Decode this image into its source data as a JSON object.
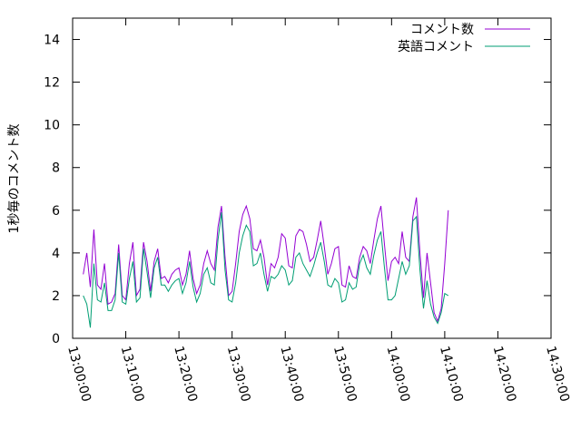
{
  "chart_data": {
    "type": "line",
    "ylabel": "1秒毎のコメント数",
    "xlabel": "",
    "ylim": [
      0,
      15
    ],
    "xlim": [
      "13:00:00",
      "14:30:00"
    ],
    "grid": false,
    "legend_position": "top-right",
    "y_ticks": [
      0,
      2,
      4,
      6,
      8,
      10,
      12,
      14
    ],
    "x_ticks": [
      "13:00:00",
      "13:10:00",
      "13:20:00",
      "13:30:00",
      "13:40:00",
      "13:50:00",
      "14:00:00",
      "14:10:00",
      "14:20:00",
      "14:30:00"
    ],
    "series": [
      {
        "name": "コメント数",
        "color": "#9400D3",
        "points": [
          [
            "13:02:00",
            3.0
          ],
          [
            "13:02:40",
            4.0
          ],
          [
            "13:03:20",
            2.4
          ],
          [
            "13:04:00",
            5.1
          ],
          [
            "13:04:40",
            2.5
          ],
          [
            "13:05:20",
            2.3
          ],
          [
            "13:06:00",
            3.5
          ],
          [
            "13:06:40",
            1.6
          ],
          [
            "13:07:20",
            1.7
          ],
          [
            "13:08:00",
            2.1
          ],
          [
            "13:08:40",
            4.4
          ],
          [
            "13:09:20",
            2.0
          ],
          [
            "13:10:00",
            1.8
          ],
          [
            "13:10:40",
            3.5
          ],
          [
            "13:11:20",
            4.5
          ],
          [
            "13:12:00",
            2.0
          ],
          [
            "13:12:40",
            2.3
          ],
          [
            "13:13:20",
            4.5
          ],
          [
            "13:14:00",
            3.6
          ],
          [
            "13:14:40",
            2.2
          ],
          [
            "13:15:20",
            3.6
          ],
          [
            "13:16:00",
            4.2
          ],
          [
            "13:16:40",
            2.8
          ],
          [
            "13:17:20",
            2.9
          ],
          [
            "13:18:00",
            2.6
          ],
          [
            "13:18:40",
            3.0
          ],
          [
            "13:19:20",
            3.2
          ],
          [
            "13:20:00",
            3.3
          ],
          [
            "13:20:40",
            2.5
          ],
          [
            "13:21:20",
            3.0
          ],
          [
            "13:22:00",
            4.1
          ],
          [
            "13:22:40",
            2.8
          ],
          [
            "13:23:20",
            2.1
          ],
          [
            "13:24:00",
            2.5
          ],
          [
            "13:24:40",
            3.5
          ],
          [
            "13:25:20",
            4.1
          ],
          [
            "13:26:00",
            3.5
          ],
          [
            "13:26:40",
            3.2
          ],
          [
            "13:27:20",
            5.2
          ],
          [
            "13:28:00",
            6.2
          ],
          [
            "13:28:40",
            3.8
          ],
          [
            "13:29:20",
            2.0
          ],
          [
            "13:30:00",
            2.2
          ],
          [
            "13:30:40",
            3.5
          ],
          [
            "13:31:20",
            5.0
          ],
          [
            "13:32:00",
            5.8
          ],
          [
            "13:32:40",
            6.2
          ],
          [
            "13:33:20",
            5.6
          ],
          [
            "13:34:00",
            4.2
          ],
          [
            "13:34:40",
            4.1
          ],
          [
            "13:35:20",
            4.6
          ],
          [
            "13:36:00",
            3.8
          ],
          [
            "13:36:40",
            2.5
          ],
          [
            "13:37:20",
            3.5
          ],
          [
            "13:38:00",
            3.3
          ],
          [
            "13:38:40",
            3.8
          ],
          [
            "13:39:20",
            4.9
          ],
          [
            "13:40:00",
            4.7
          ],
          [
            "13:40:40",
            3.4
          ],
          [
            "13:41:20",
            3.3
          ],
          [
            "13:42:00",
            4.8
          ],
          [
            "13:42:40",
            5.1
          ],
          [
            "13:43:20",
            5.0
          ],
          [
            "13:44:00",
            4.4
          ],
          [
            "13:44:40",
            3.6
          ],
          [
            "13:45:20",
            3.8
          ],
          [
            "13:46:00",
            4.6
          ],
          [
            "13:46:40",
            5.5
          ],
          [
            "13:47:20",
            4.3
          ],
          [
            "13:48:00",
            3.0
          ],
          [
            "13:48:40",
            3.5
          ],
          [
            "13:49:20",
            4.2
          ],
          [
            "13:50:00",
            4.3
          ],
          [
            "13:50:40",
            2.5
          ],
          [
            "13:51:20",
            2.4
          ],
          [
            "13:52:00",
            3.4
          ],
          [
            "13:52:40",
            2.9
          ],
          [
            "13:53:20",
            2.8
          ],
          [
            "13:54:00",
            3.8
          ],
          [
            "13:54:40",
            4.3
          ],
          [
            "13:55:20",
            4.1
          ],
          [
            "13:56:00",
            3.5
          ],
          [
            "13:56:40",
            4.6
          ],
          [
            "13:57:20",
            5.6
          ],
          [
            "13:58:00",
            6.2
          ],
          [
            "13:58:40",
            4.4
          ],
          [
            "13:59:20",
            2.7
          ],
          [
            "14:00:00",
            3.6
          ],
          [
            "14:00:40",
            3.8
          ],
          [
            "14:01:20",
            3.5
          ],
          [
            "14:02:00",
            5.0
          ],
          [
            "14:02:40",
            3.8
          ],
          [
            "14:03:20",
            3.6
          ],
          [
            "14:04:00",
            5.7
          ],
          [
            "14:04:40",
            6.6
          ],
          [
            "14:05:20",
            4.0
          ],
          [
            "14:06:00",
            1.9
          ],
          [
            "14:06:40",
            4.0
          ],
          [
            "14:07:20",
            2.6
          ],
          [
            "14:08:00",
            1.2
          ],
          [
            "14:08:40",
            0.8
          ],
          [
            "14:09:20",
            1.4
          ],
          [
            "14:10:00",
            3.5
          ],
          [
            "14:10:40",
            6.0
          ]
        ]
      },
      {
        "name": "英語コメント",
        "color": "#009E73",
        "points": [
          [
            "13:02:00",
            2.0
          ],
          [
            "13:02:40",
            1.6
          ],
          [
            "13:03:20",
            0.5
          ],
          [
            "13:04:00",
            3.5
          ],
          [
            "13:04:40",
            1.8
          ],
          [
            "13:05:20",
            1.7
          ],
          [
            "13:06:00",
            2.6
          ],
          [
            "13:06:40",
            1.3
          ],
          [
            "13:07:20",
            1.3
          ],
          [
            "13:08:00",
            1.8
          ],
          [
            "13:08:40",
            4.0
          ],
          [
            "13:09:20",
            1.7
          ],
          [
            "13:10:00",
            1.6
          ],
          [
            "13:10:40",
            2.8
          ],
          [
            "13:11:20",
            3.6
          ],
          [
            "13:12:00",
            1.7
          ],
          [
            "13:12:40",
            1.9
          ],
          [
            "13:13:20",
            4.2
          ],
          [
            "13:14:00",
            3.1
          ],
          [
            "13:14:40",
            1.9
          ],
          [
            "13:15:20",
            3.3
          ],
          [
            "13:16:00",
            3.8
          ],
          [
            "13:16:40",
            2.5
          ],
          [
            "13:17:20",
            2.5
          ],
          [
            "13:18:00",
            2.2
          ],
          [
            "13:18:40",
            2.5
          ],
          [
            "13:19:20",
            2.7
          ],
          [
            "13:20:00",
            2.8
          ],
          [
            "13:20:40",
            2.1
          ],
          [
            "13:21:20",
            2.6
          ],
          [
            "13:22:00",
            3.6
          ],
          [
            "13:22:40",
            2.4
          ],
          [
            "13:23:20",
            1.7
          ],
          [
            "13:24:00",
            2.1
          ],
          [
            "13:24:40",
            3.0
          ],
          [
            "13:25:20",
            3.3
          ],
          [
            "13:26:00",
            2.6
          ],
          [
            "13:26:40",
            2.5
          ],
          [
            "13:27:20",
            4.6
          ],
          [
            "13:28:00",
            5.9
          ],
          [
            "13:28:40",
            3.2
          ],
          [
            "13:29:20",
            1.8
          ],
          [
            "13:30:00",
            1.7
          ],
          [
            "13:30:40",
            2.6
          ],
          [
            "13:31:20",
            4.0
          ],
          [
            "13:32:00",
            4.8
          ],
          [
            "13:32:40",
            5.3
          ],
          [
            "13:33:20",
            5.0
          ],
          [
            "13:34:00",
            3.4
          ],
          [
            "13:34:40",
            3.5
          ],
          [
            "13:35:20",
            4.0
          ],
          [
            "13:36:00",
            3.0
          ],
          [
            "13:36:40",
            2.2
          ],
          [
            "13:37:20",
            2.9
          ],
          [
            "13:38:00",
            2.8
          ],
          [
            "13:38:40",
            3.0
          ],
          [
            "13:39:20",
            3.4
          ],
          [
            "13:40:00",
            3.2
          ],
          [
            "13:40:40",
            2.5
          ],
          [
            "13:41:20",
            2.7
          ],
          [
            "13:42:00",
            3.8
          ],
          [
            "13:42:40",
            4.0
          ],
          [
            "13:43:20",
            3.5
          ],
          [
            "13:44:00",
            3.2
          ],
          [
            "13:44:40",
            2.9
          ],
          [
            "13:45:20",
            3.4
          ],
          [
            "13:46:00",
            4.0
          ],
          [
            "13:46:40",
            4.5
          ],
          [
            "13:47:20",
            3.6
          ],
          [
            "13:48:00",
            2.5
          ],
          [
            "13:48:40",
            2.4
          ],
          [
            "13:49:20",
            2.8
          ],
          [
            "13:50:00",
            2.6
          ],
          [
            "13:50:40",
            1.7
          ],
          [
            "13:51:20",
            1.8
          ],
          [
            "13:52:00",
            2.6
          ],
          [
            "13:52:40",
            2.3
          ],
          [
            "13:53:20",
            2.4
          ],
          [
            "13:54:00",
            3.5
          ],
          [
            "13:54:40",
            3.9
          ],
          [
            "13:55:20",
            3.3
          ],
          [
            "13:56:00",
            3.0
          ],
          [
            "13:56:40",
            3.9
          ],
          [
            "13:57:20",
            4.6
          ],
          [
            "13:58:00",
            5.0
          ],
          [
            "13:58:40",
            3.3
          ],
          [
            "13:59:20",
            1.8
          ],
          [
            "14:00:00",
            1.8
          ],
          [
            "14:00:40",
            2.0
          ],
          [
            "14:01:20",
            2.8
          ],
          [
            "14:02:00",
            3.6
          ],
          [
            "14:02:40",
            3.0
          ],
          [
            "14:03:20",
            3.4
          ],
          [
            "14:04:00",
            5.5
          ],
          [
            "14:04:40",
            5.7
          ],
          [
            "14:05:20",
            3.2
          ],
          [
            "14:06:00",
            1.4
          ],
          [
            "14:06:40",
            2.7
          ],
          [
            "14:07:20",
            1.6
          ],
          [
            "14:08:00",
            1.0
          ],
          [
            "14:08:40",
            0.7
          ],
          [
            "14:09:20",
            1.2
          ],
          [
            "14:10:00",
            2.1
          ],
          [
            "14:10:40",
            2.0
          ]
        ]
      }
    ]
  }
}
